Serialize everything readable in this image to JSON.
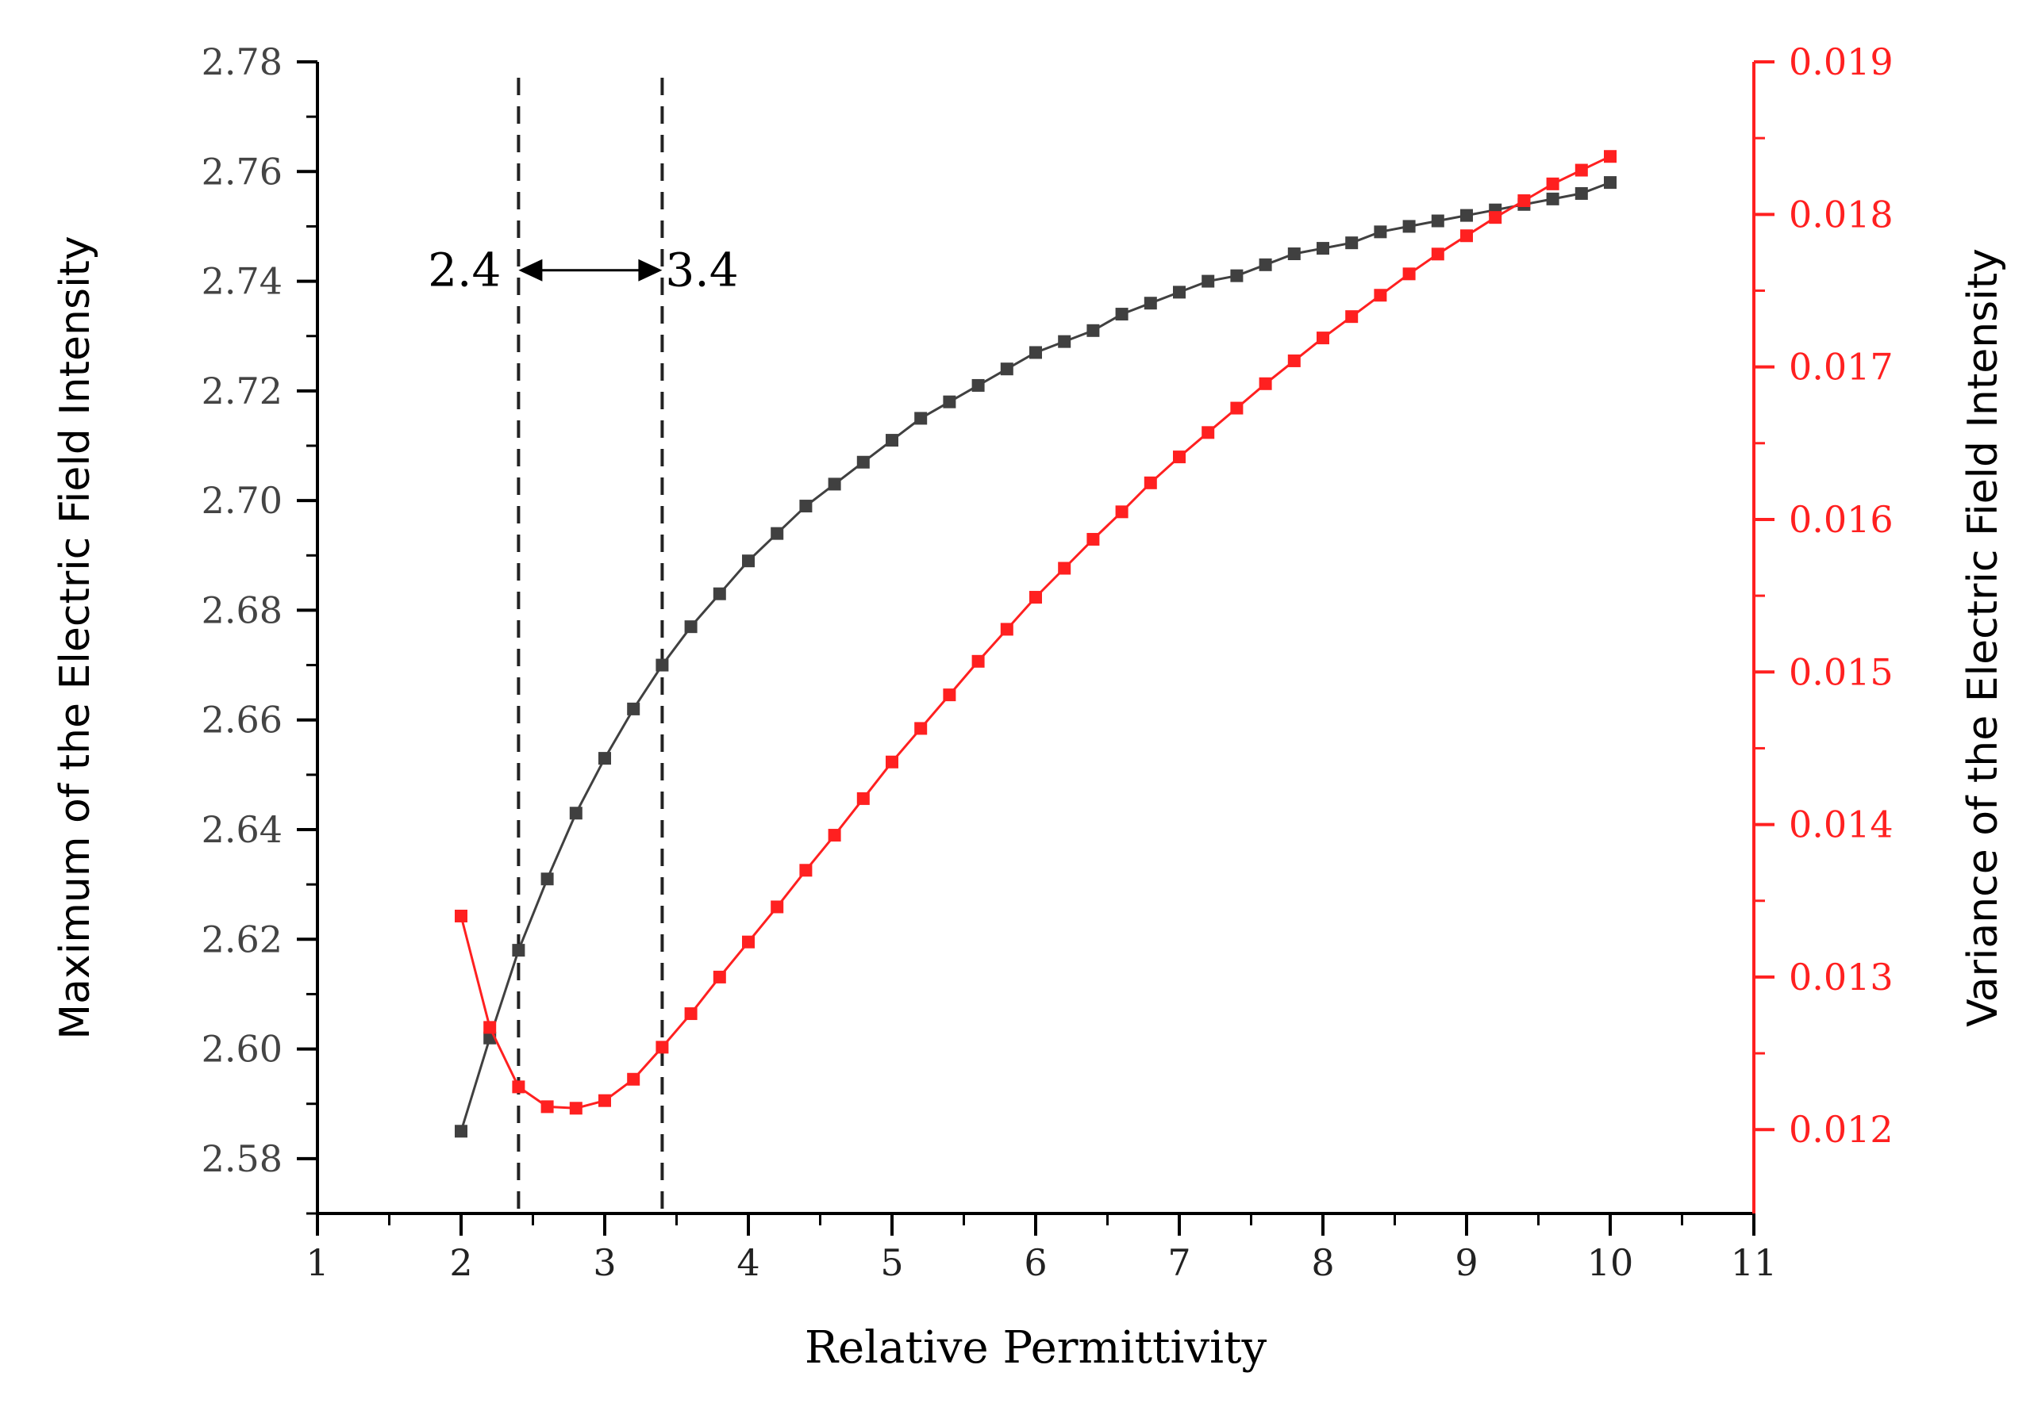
{
  "chart_data": {
    "type": "line",
    "xlabel": "Relative Permittivity",
    "ylabel_left": "Maximum of the Electric Field Intensity",
    "ylabel_right": "Variance of the Electric Field Intensity",
    "xlim": [
      1,
      11
    ],
    "ylim_left": [
      2.57,
      2.78
    ],
    "ylim_right": [
      0.01145,
      0.019
    ],
    "x_ticks": [
      1,
      2,
      3,
      4,
      5,
      6,
      7,
      8,
      9,
      10,
      11
    ],
    "y_left_ticks": [
      2.58,
      2.6,
      2.62,
      2.64,
      2.66,
      2.68,
      2.7,
      2.72,
      2.74,
      2.76,
      2.78
    ],
    "y_left_tick_labels": [
      "2.58",
      "2.60",
      "2.62",
      "2.64",
      "2.66",
      "2.68",
      "2.70",
      "2.72",
      "2.74",
      "2.76",
      "2.78"
    ],
    "y_right_ticks": [
      0.012,
      0.013,
      0.014,
      0.015,
      0.016,
      0.017,
      0.018,
      0.019
    ],
    "y_right_tick_labels": [
      "0.012",
      "0.013",
      "0.014",
      "0.015",
      "0.016",
      "0.017",
      "0.018",
      "0.019"
    ],
    "grid": false,
    "legend": "none",
    "colors": {
      "left_series": "#404040",
      "right_series": "#ff2020",
      "right_axis": "#ff2020"
    },
    "x": [
      2.0,
      2.2,
      2.4,
      2.6,
      2.8,
      3.0,
      3.2,
      3.4,
      3.6,
      3.8,
      4.0,
      4.2,
      4.4,
      4.6,
      4.8,
      5.0,
      5.2,
      5.4,
      5.6,
      5.8,
      6.0,
      6.2,
      6.4,
      6.6,
      6.8,
      7.0,
      7.2,
      7.4,
      7.6,
      7.8,
      8.0,
      8.2,
      8.4,
      8.6,
      8.8,
      9.0,
      9.2,
      9.4,
      9.6,
      9.8,
      10.0
    ],
    "series": [
      {
        "axis": "left",
        "values": [
          2.585,
          2.602,
          2.618,
          2.631,
          2.643,
          2.653,
          2.662,
          2.67,
          2.677,
          2.683,
          2.689,
          2.694,
          2.699,
          2.703,
          2.707,
          2.711,
          2.715,
          2.718,
          2.721,
          2.724,
          2.727,
          2.729,
          2.731,
          2.734,
          2.736,
          2.738,
          2.74,
          2.741,
          2.743,
          2.745,
          2.746,
          2.747,
          2.749,
          2.75,
          2.751,
          2.752,
          2.753,
          2.754,
          2.755,
          2.756,
          2.758
        ]
      },
      {
        "axis": "right",
        "values": [
          0.0134,
          0.01267,
          0.01228,
          0.01215,
          0.01214,
          0.01219,
          0.01233,
          0.01254,
          0.01276,
          0.013,
          0.01323,
          0.01346,
          0.0137,
          0.01393,
          0.01417,
          0.01441,
          0.01463,
          0.01485,
          0.01507,
          0.01528,
          0.01549,
          0.01568,
          0.01587,
          0.01605,
          0.01624,
          0.01641,
          0.01657,
          0.01673,
          0.01689,
          0.01704,
          0.01719,
          0.01733,
          0.01747,
          0.01761,
          0.01774,
          0.01786,
          0.01798,
          0.01809,
          0.0182,
          0.01829,
          0.01838
        ]
      }
    ],
    "vlines": [
      2.4,
      3.4
    ],
    "annotation": {
      "left_label": "2.4",
      "right_label": "3.4",
      "from": 2.4,
      "to": 3.4,
      "y_left": 2.742
    }
  }
}
